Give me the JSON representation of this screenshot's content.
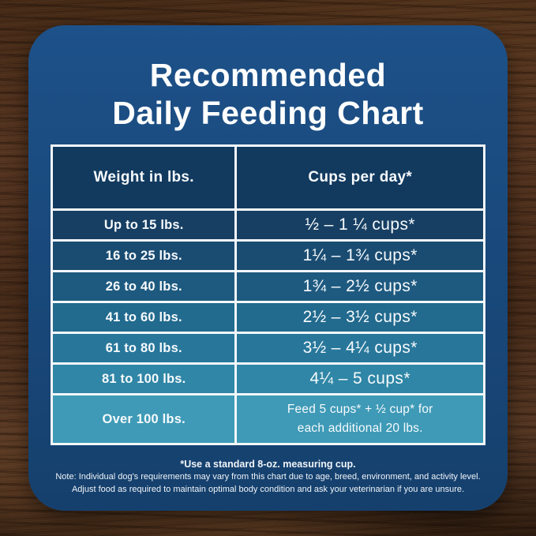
{
  "chart_data": {
    "type": "table",
    "title_lines": [
      "Recommended",
      "Daily Feeding Chart"
    ],
    "columns": [
      "Weight in lbs.",
      "Cups per day*"
    ],
    "rows": [
      {
        "weight": "Up to 15 lbs.",
        "cups": "½ – 1 ¼ cups*"
      },
      {
        "weight": "16 to 25 lbs.",
        "cups": "1¼ – 1¾  cups*"
      },
      {
        "weight": "26 to 40 lbs.",
        "cups": "1¾ – 2½ cups*"
      },
      {
        "weight": "41 to 60 lbs.",
        "cups": "2½ – 3½ cups*"
      },
      {
        "weight": "61 to 80 lbs.",
        "cups": "3½ – 4¼ cups*"
      },
      {
        "weight": "81 to 100 lbs.",
        "cups": "4¼ – 5 cups*"
      },
      {
        "weight": "Over 100 lbs.",
        "cups": "Feed 5 cups* + ½ cup* for\neach additional 20 lbs."
      }
    ],
    "footnotes": [
      "*Use a standard 8-oz. measuring cup.",
      "Note: Individual dog's requirements may vary from this chart due to age, breed, environment, and activity level.",
      "Adjust food as required to maintain optimal body condition and ask your veterinarian if you are unsure."
    ],
    "legend_position": "none",
    "grid": "white cell borders"
  },
  "colors": {
    "card_top": "#1d5189",
    "card_bottom": "#15406d",
    "header_cell": "#123a5f",
    "row_colors": [
      "#173f63",
      "#1a4c72",
      "#1e5a80",
      "#226a8e",
      "#28779b",
      "#2f86a6",
      "#3e9ab7"
    ],
    "border": "#f4f7f9",
    "text": "#ffffff"
  }
}
